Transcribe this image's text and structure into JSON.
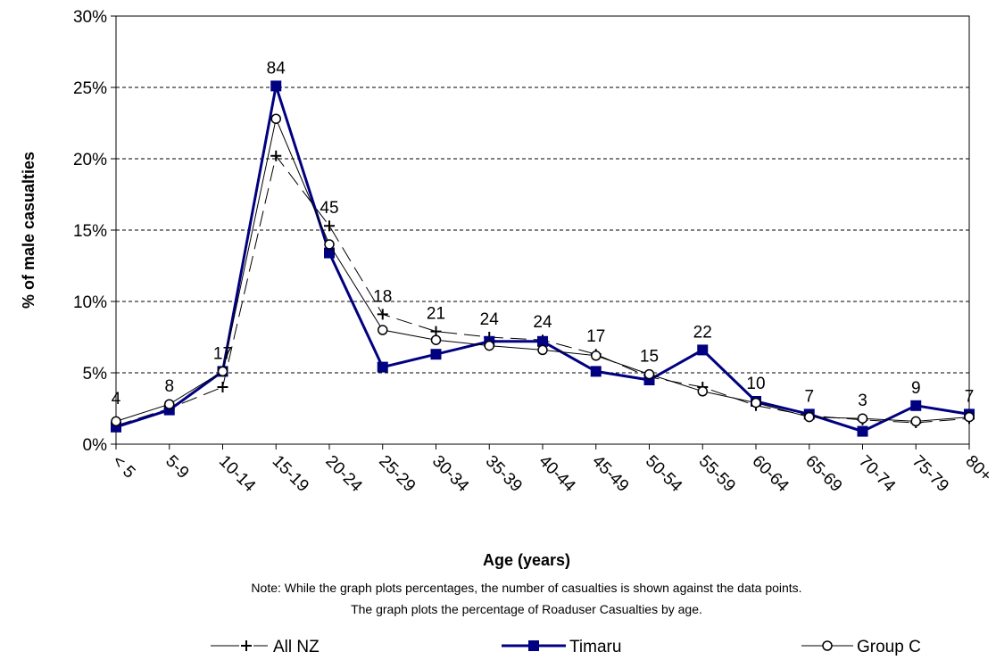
{
  "chart_data": {
    "type": "line",
    "ylabel": "% of male casualties",
    "xlabel": "Age (years)",
    "ylim": [
      0,
      30
    ],
    "yticks": [
      "0%",
      "5%",
      "10%",
      "15%",
      "20%",
      "25%",
      "30%"
    ],
    "grid": "horizontal dashed",
    "categories": [
      "< 5",
      "5-9",
      "10-14",
      "15-19",
      "20-24",
      "25-29",
      "30-34",
      "35-39",
      "40-44",
      "45-49",
      "50-54",
      "55-59",
      "60-64",
      "65-69",
      "70-74",
      "75-79",
      "80+"
    ],
    "series": [
      {
        "name": "All NZ",
        "color": "#000000",
        "marker": "plus",
        "dash": "long-dash",
        "values": [
          1.3,
          2.5,
          4.0,
          20.2,
          15.3,
          9.1,
          7.9,
          7.5,
          7.3,
          6.3,
          4.7,
          4.0,
          2.7,
          2.0,
          1.7,
          1.5,
          1.8
        ]
      },
      {
        "name": "Timaru",
        "color": "#000080",
        "marker": "square",
        "dash": "solid",
        "values": [
          1.2,
          2.4,
          5.1,
          25.1,
          13.4,
          5.4,
          6.3,
          7.2,
          7.2,
          5.1,
          4.5,
          6.6,
          3.0,
          2.1,
          0.9,
          2.7,
          2.1
        ]
      },
      {
        "name": "Group C",
        "color": "#000000",
        "marker": "circle",
        "dash": "solid",
        "values": [
          1.6,
          2.8,
          5.1,
          22.8,
          14.0,
          8.0,
          7.3,
          6.9,
          6.6,
          6.2,
          4.9,
          3.7,
          2.9,
          1.9,
          1.8,
          1.6,
          1.9
        ]
      }
    ],
    "data_labels": [
      "4",
      "8",
      "17",
      "84",
      "45",
      "18",
      "21",
      "24",
      "24",
      "17",
      "15",
      "22",
      "10",
      "7",
      "3",
      "9",
      "7"
    ],
    "note_lines": [
      "Note: While the graph plots percentages, the number of casualties is shown against the  data points.",
      "The graph plots the percentage of Roaduser Casualties by age."
    ],
    "legend": {
      "position": "bottom",
      "entries": [
        "All NZ",
        "Timaru",
        "Group C"
      ]
    }
  }
}
